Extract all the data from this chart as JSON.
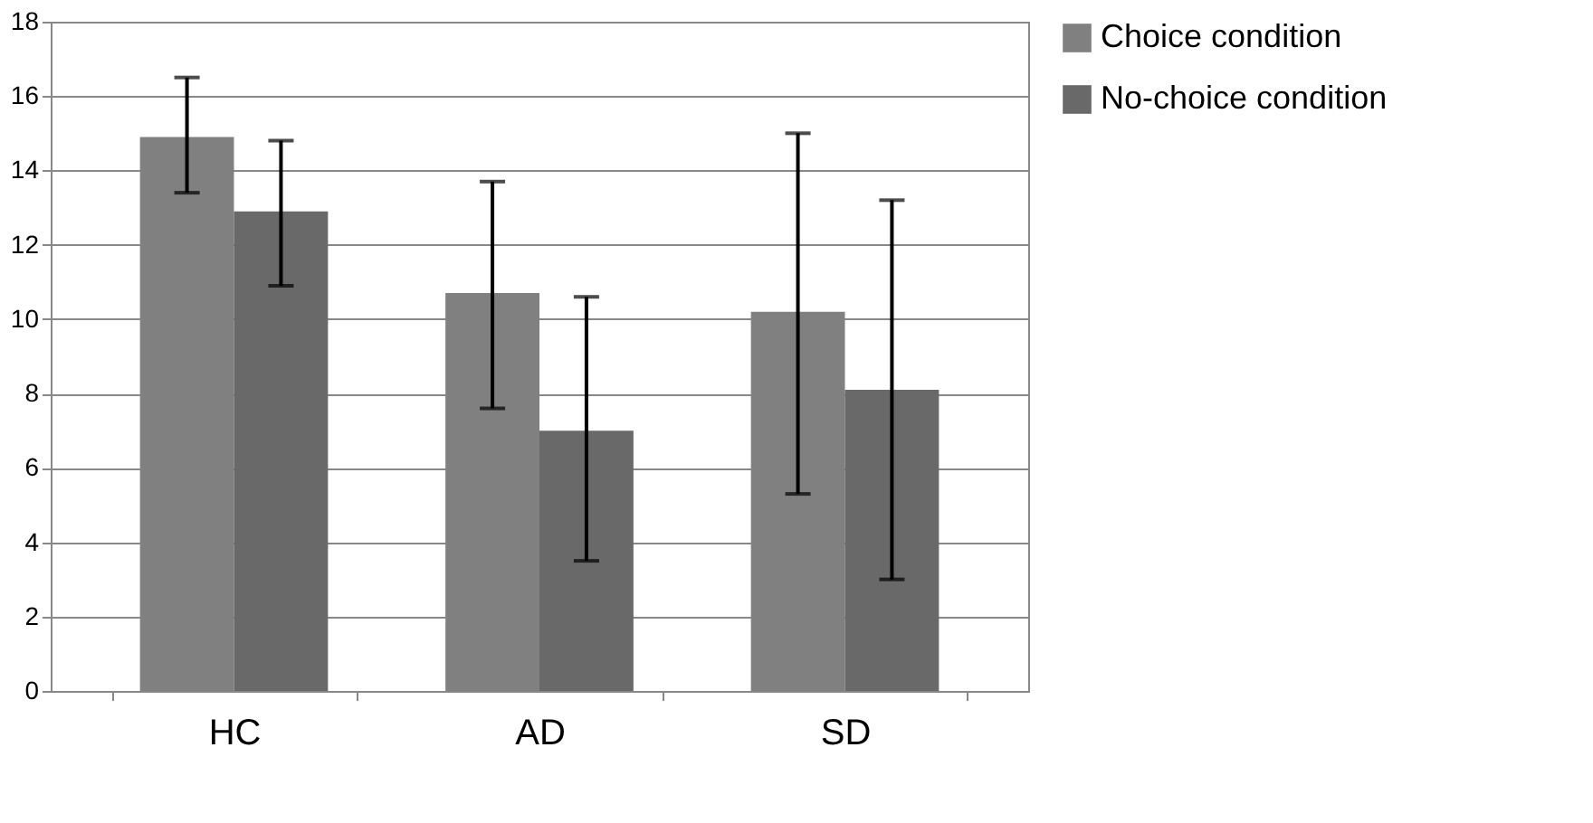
{
  "chart_data": {
    "type": "bar",
    "categories": [
      "HC",
      "AD",
      "SD"
    ],
    "series": [
      {
        "name": "Choice condition",
        "color": "#808080",
        "values": [
          14.9,
          10.7,
          10.2
        ],
        "errors": [
          [
            13.4,
            16.5
          ],
          [
            7.6,
            13.7
          ],
          [
            5.3,
            15.0
          ]
        ]
      },
      {
        "name": "No-choice condition",
        "color": "#696969",
        "values": [
          12.9,
          7.0,
          8.1
        ],
        "errors": [
          [
            10.9,
            14.8
          ],
          [
            3.5,
            10.6
          ],
          [
            3.0,
            13.2
          ]
        ]
      }
    ],
    "ylim": [
      0,
      18
    ],
    "yticks": [
      0,
      2,
      4,
      6,
      8,
      10,
      12,
      14,
      16,
      18
    ],
    "grid": "y",
    "legend": "right"
  }
}
